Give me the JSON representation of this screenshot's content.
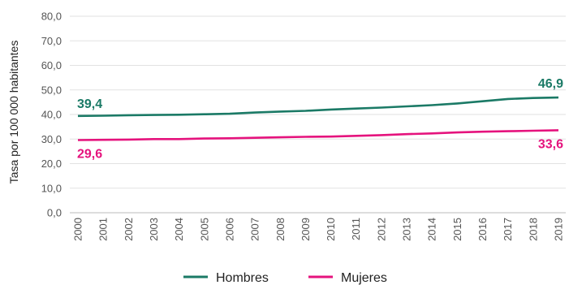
{
  "chart_data": {
    "type": "line",
    "ylabel": "Tasa por 100 000 habitantes",
    "xlabel": "",
    "ylim": [
      0,
      80
    ],
    "y_ticks": [
      "0,0",
      "10,0",
      "20,0",
      "30,0",
      "40,0",
      "50,0",
      "60,0",
      "70,0",
      "80,0"
    ],
    "grid": "horizontal",
    "legend_position": "bottom",
    "x": [
      "2000",
      "2001",
      "2002",
      "2003",
      "2004",
      "2005",
      "2006",
      "2007",
      "2008",
      "2009",
      "2010",
      "2011",
      "2012",
      "2013",
      "2014",
      "2015",
      "2016",
      "2017",
      "2018",
      "2019"
    ],
    "series": [
      {
        "name": "Hombres",
        "color": "#1b7a66",
        "values": [
          39.4,
          39.5,
          39.7,
          39.8,
          39.9,
          40.1,
          40.3,
          40.8,
          41.2,
          41.5,
          42.0,
          42.4,
          42.8,
          43.3,
          43.8,
          44.5,
          45.4,
          46.3,
          46.7,
          46.9
        ],
        "labels": {
          "first": "39,4",
          "last": "46,9"
        }
      },
      {
        "name": "Mujeres",
        "color": "#e5137d",
        "values": [
          29.6,
          29.7,
          29.8,
          30.0,
          30.0,
          30.2,
          30.3,
          30.5,
          30.7,
          30.9,
          31.0,
          31.3,
          31.6,
          32.0,
          32.3,
          32.7,
          33.0,
          33.2,
          33.4,
          33.6
        ],
        "labels": {
          "first": "29,6",
          "last": "33,6"
        }
      }
    ]
  }
}
